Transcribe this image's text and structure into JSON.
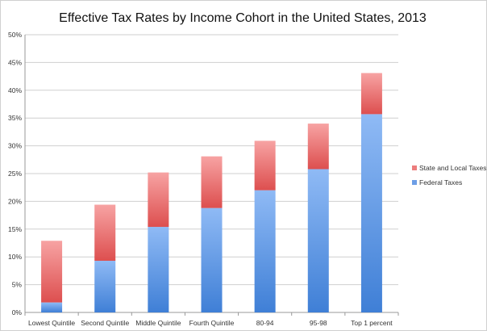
{
  "chart_data": {
    "type": "bar",
    "stacked": true,
    "title": "Effective Tax Rates by Income Cohort in the United States, 2013",
    "categories": [
      "Lowest Quintile",
      "Second Quintile",
      "Middle Quintile",
      "Fourth Quintile",
      "80-94",
      "95-98",
      "Top 1 percent"
    ],
    "series": [
      {
        "name": "Federal Taxes",
        "values": [
          1.8,
          9.3,
          15.4,
          18.8,
          22.0,
          25.8,
          35.7
        ],
        "color": "#6d9ee6"
      },
      {
        "name": "State and Local Taxes",
        "values": [
          11.1,
          10.1,
          9.8,
          9.3,
          8.9,
          8.2,
          7.4
        ],
        "color": "#ec7d7d"
      }
    ],
    "ylim": [
      0,
      50
    ],
    "yticks": [
      "0%",
      "5%",
      "10%",
      "15%",
      "20%",
      "25%",
      "30%",
      "35%",
      "40%",
      "45%",
      "50%"
    ],
    "grid": true,
    "legend_position": "right",
    "legend_order": [
      "State and Local Taxes",
      "Federal Taxes"
    ]
  }
}
